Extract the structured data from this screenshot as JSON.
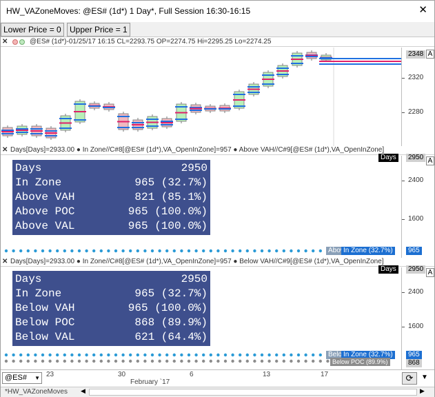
{
  "window": {
    "title": "HW_VAZoneMoves: @ES# (1d*) 1 Day*, Full Session 16:30-16:15",
    "close_glyph": "✕"
  },
  "toolbar": {
    "lower_price": "Lower Price = 0",
    "upper_price": "Upper Price = 1"
  },
  "price_pane": {
    "header": "@ES# (1d*)-01/25/17 16:15 CL=2293.75 OP=2274.75 Hi=2295.25 Lo=2274.25",
    "axis": [
      "2320",
      "2280"
    ],
    "current": "2348",
    "a_badge": "A"
  },
  "pane1": {
    "header": "Days[Days]=2933.00  ● In Zone//C#8[@ES# (1d*),VA_OpenInZone]=957  ● Above VAH//C#9[@ES# (1d*),VA_OpenInZone]",
    "corner_label": "Days",
    "corner_value": "2950",
    "axis": [
      "2400",
      "1600"
    ],
    "rows": [
      {
        "label": "Days",
        "value": "2950"
      },
      {
        "label": "In Zone",
        "value": "965 (32.7%)"
      },
      {
        "label": "Above VAH",
        "value": "821 (85.1%)"
      },
      {
        "label": "Above POC",
        "value": "965 (100.0%)"
      },
      {
        "label": "Above VAL",
        "value": "965 (100.0%)"
      }
    ],
    "bottom_tag1": "Abov",
    "bottom_tag2": "In Zone (32.7%)",
    "bottom_value": "965",
    "a_badge": "A"
  },
  "pane2": {
    "header": "Days[Days]=2933.00  ● In Zone//C#8[@ES# (1d*),VA_OpenInZone]=957  ● Below VAH//C#9[@ES# (1d*),VA_OpenInZone]",
    "corner_label": "Days",
    "corner_value": "2950",
    "axis": [
      "2400",
      "1600"
    ],
    "rows": [
      {
        "label": "Days",
        "value": "2950"
      },
      {
        "label": "In Zone",
        "value": "965 (32.7%)"
      },
      {
        "label": "Below VAH",
        "value": "965 (100.0%)"
      },
      {
        "label": "Below POC",
        "value": "868 (89.9%)"
      },
      {
        "label": "Below VAL",
        "value": "621 (64.4%)"
      }
    ],
    "bottom_tag1": "Belo",
    "bottom_tag2": "In Zone (32.7%)",
    "bottom_tag3": "Below POC (89.9%)",
    "bottom_value": "965",
    "bottom_value2": "868",
    "a_badge": "A"
  },
  "datebar": {
    "symbol": "@ES#",
    "dates": [
      "23",
      "30",
      "6",
      "13",
      "17"
    ],
    "month": "February `17"
  },
  "statusbar": {
    "tab": "*HW_VAZoneMoves"
  },
  "colors": {
    "infobox": "#3e4f8d",
    "blue_line": "#1f6fe0",
    "magenta": "#e0206a",
    "up_candle": "#b8f0b8",
    "down_candle": "#f0b8c0",
    "dot": "#2a9ad6"
  }
}
